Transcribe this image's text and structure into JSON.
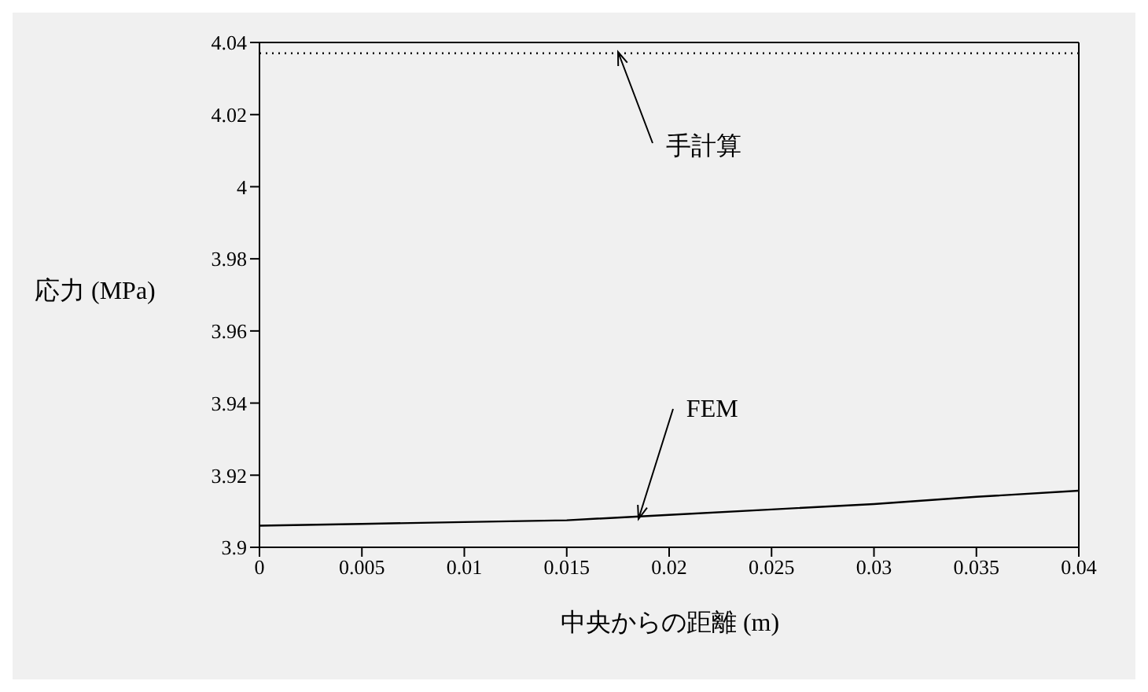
{
  "chart_data": {
    "type": "line",
    "xlabel": "中央からの距離 (m)",
    "ylabel": "応力 (MPa)",
    "xlim": [
      0,
      0.04
    ],
    "xticks": [
      0,
      0.005,
      0.01,
      0.015,
      0.02,
      0.025,
      0.03,
      0.035,
      0.04
    ],
    "ylim": [
      3.9,
      4.04
    ],
    "yticks": [
      3.9,
      3.92,
      3.94,
      3.96,
      3.98,
      4,
      4.02,
      4.04
    ],
    "marker": "none",
    "series": [
      {
        "color": "#000000",
        "line_style": "dotted",
        "x": [
          0,
          0.04
        ],
        "values": [
          4.037,
          4.037
        ]
      },
      {
        "color": "#000000",
        "line_style": "solid",
        "x": [
          0,
          0.005,
          0.01,
          0.015,
          0.02,
          0.025,
          0.03,
          0.035,
          0.04
        ],
        "values": [
          3.906,
          3.9065,
          3.907,
          3.9075,
          3.909,
          3.9105,
          3.912,
          3.914,
          3.9157
        ]
      }
    ],
    "annotations": [
      {
        "text": "手計算",
        "x": 0.0175,
        "y": 4.037
      },
      {
        "text": "FEM",
        "x": 0.0185,
        "y": 3.908
      }
    ]
  }
}
